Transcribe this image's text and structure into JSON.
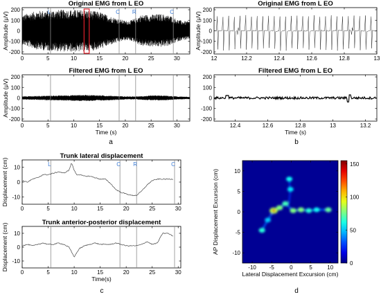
{
  "chart_data": [
    {
      "id": "emg_orig_full",
      "type": "line",
      "title": "Original EMG from L EO",
      "xlabel": "",
      "ylabel": "Amplitude (μV)",
      "xlim": [
        0,
        32.5
      ],
      "ylim": [
        -220,
        220
      ],
      "xticks": [
        0,
        5,
        10,
        15,
        20,
        25,
        30
      ],
      "yticks": [
        -200,
        -100,
        0,
        100,
        200
      ],
      "envelope": {
        "x": [
          0,
          1,
          3,
          5,
          7,
          9,
          11,
          13,
          15,
          17,
          19,
          20,
          21,
          22,
          23,
          25,
          27,
          29,
          30,
          31,
          32.5
        ],
        "upper": [
          150,
          165,
          190,
          195,
          200,
          200,
          200,
          195,
          180,
          140,
          110,
          95,
          100,
          120,
          150,
          155,
          160,
          140,
          110,
          95,
          90
        ],
        "lower": [
          -130,
          -150,
          -180,
          -190,
          -195,
          -200,
          -200,
          -195,
          -175,
          -135,
          -105,
          -90,
          -95,
          -115,
          -145,
          -150,
          -155,
          -135,
          -105,
          -90,
          -85
        ]
      },
      "highlight_window": [
        12,
        13
      ],
      "vlines": [
        5.5,
        18.8,
        22,
        29.3
      ],
      "markers": [
        {
          "x": 5.5,
          "label": "L"
        },
        {
          "x": 18.8,
          "label": "C"
        },
        {
          "x": 22,
          "label": "R"
        },
        {
          "x": 29.3,
          "label": "C"
        }
      ],
      "grid": false
    },
    {
      "id": "emg_filt_full",
      "type": "line",
      "title": "Filtered EMG from L EO",
      "xlabel": "Time (s)",
      "ylabel": "Amplitude (μV)",
      "xlim": [
        0,
        32.5
      ],
      "ylim": [
        -220,
        220
      ],
      "xticks": [
        0,
        5,
        10,
        15,
        20,
        25,
        30
      ],
      "yticks": [
        -200,
        -100,
        0,
        100,
        200
      ],
      "envelope": {
        "x": [
          0,
          2,
          5,
          8,
          10,
          12,
          14,
          16,
          18,
          20,
          22,
          24,
          26,
          28,
          30,
          32.5
        ],
        "upper": [
          15,
          18,
          22,
          25,
          28,
          30,
          28,
          24,
          20,
          15,
          14,
          20,
          25,
          22,
          15,
          10
        ],
        "lower": [
          -15,
          -18,
          -22,
          -25,
          -28,
          -30,
          -28,
          -24,
          -20,
          -15,
          -14,
          -20,
          -25,
          -22,
          -15,
          -10
        ]
      },
      "vlines": [
        5.5,
        18.8,
        22,
        29.3
      ],
      "grid": false
    },
    {
      "id": "emg_orig_zoom",
      "type": "line",
      "title": "Original EMG from L EO",
      "xlabel": "",
      "ylabel": "Amplitude (μV)",
      "xlim": [
        12,
        13
      ],
      "ylim": [
        -220,
        220
      ],
      "xticks": [
        12,
        12.2,
        12.4,
        12.6,
        12.8,
        13
      ],
      "yticks": [
        -200,
        -100,
        0,
        100,
        200
      ],
      "spike_times": [
        12.02,
        12.055,
        12.09,
        12.125,
        12.16,
        12.195,
        12.23,
        12.265,
        12.3,
        12.335,
        12.37,
        12.405,
        12.44,
        12.475,
        12.51,
        12.545,
        12.58,
        12.615,
        12.65,
        12.685,
        12.72,
        12.755,
        12.79,
        12.825,
        12.86,
        12.895,
        12.93,
        12.965
      ],
      "spike_max": 150,
      "spike_min": -190,
      "grid": false
    },
    {
      "id": "emg_filt_zoom",
      "type": "line",
      "title": "Filtered EMG from L EO",
      "xlabel": "Time (s)",
      "ylabel": "",
      "xlim": [
        12.27,
        13.27
      ],
      "ylim": [
        -220,
        220
      ],
      "xticks": [
        12.4,
        12.6,
        12.8,
        13,
        13.2
      ],
      "yticks": [
        -200,
        -100,
        0,
        100,
        200
      ],
      "grid": false
    },
    {
      "id": "trunk_lateral",
      "type": "line",
      "title": "Trunk lateral displacement",
      "xlabel": "",
      "ylabel": "Displacement (cm)",
      "xlim": [
        0,
        30.5
      ],
      "ylim": [
        -15,
        15
      ],
      "xticks": [
        0,
        5,
        10,
        15,
        20,
        25,
        30
      ],
      "yticks": [
        -10,
        0,
        10
      ],
      "x": [
        0,
        1,
        2,
        3,
        4,
        5,
        6,
        7,
        8,
        9,
        9.5,
        10,
        10.5,
        11,
        12,
        13,
        14,
        15,
        16,
        17,
        18,
        19,
        20,
        21,
        22,
        23,
        24,
        25,
        26,
        27,
        28,
        29
      ],
      "y": [
        1,
        0,
        2,
        3,
        5,
        5,
        6,
        7,
        6,
        8,
        13,
        8,
        5,
        5,
        4,
        4,
        3,
        2,
        2,
        -1,
        -5,
        -7,
        -8,
        -9,
        -9,
        -6,
        -2,
        1,
        2,
        2,
        2,
        2
      ],
      "vlines": [
        5.5,
        18.8,
        22,
        29.3
      ],
      "markers": [
        {
          "x": 5.5,
          "label": "L"
        },
        {
          "x": 18.8,
          "label": "C"
        },
        {
          "x": 22,
          "label": "R"
        },
        {
          "x": 29.3,
          "label": "C"
        }
      ],
      "grid": false
    },
    {
      "id": "trunk_ap",
      "type": "line",
      "title": "Trunk anterior-posterior displacement",
      "xlabel": "Time(s)",
      "ylabel": "Displacement (cm)",
      "xlim": [
        0,
        30.5
      ],
      "ylim": [
        -15,
        15
      ],
      "xticks": [
        0,
        5,
        10,
        15,
        20,
        25,
        30
      ],
      "yticks": [
        -10,
        0,
        10
      ],
      "x": [
        0,
        1,
        2,
        3,
        4,
        5,
        6,
        7,
        8,
        9,
        10,
        11,
        12,
        13,
        14,
        15,
        16,
        17,
        18,
        19,
        20,
        21,
        22,
        23,
        24,
        25,
        26,
        27,
        28,
        29
      ],
      "y": [
        1,
        2,
        1,
        2,
        3,
        2,
        2,
        3,
        2,
        0,
        -7,
        -1,
        1,
        2,
        3,
        2,
        2,
        2,
        3,
        2,
        1,
        1,
        1,
        2,
        4,
        2,
        3,
        10,
        10,
        8
      ],
      "vlines": [
        5.5,
        18.8,
        22,
        29.3
      ],
      "grid": false
    },
    {
      "id": "heatmap_excursion",
      "type": "heatmap",
      "title": "",
      "xlabel": "Lateral Displacement Excursion (cm)",
      "ylabel": "AP Displacement Excursion (cm)",
      "xlim": [
        -12.5,
        12
      ],
      "ylim": [
        -12.5,
        12.5
      ],
      "xticks": [
        -10,
        -5,
        0,
        5,
        10
      ],
      "yticks": [
        -10,
        -5,
        0,
        5,
        10
      ],
      "colorbar": {
        "min": 0,
        "max": 155,
        "ticks": [
          0,
          50,
          100,
          150
        ]
      },
      "hotspots": [
        {
          "x": -4.5,
          "y": 0.3,
          "value": 150
        },
        {
          "x": -3.0,
          "y": 1.0,
          "value": 60
        },
        {
          "x": -1.5,
          "y": 2.0,
          "value": 50
        },
        {
          "x": 0.5,
          "y": 0.3,
          "value": 60
        },
        {
          "x": 2.5,
          "y": 0.5,
          "value": 60
        },
        {
          "x": 4.5,
          "y": 0.3,
          "value": 45
        },
        {
          "x": 6.5,
          "y": 0.5,
          "value": 40
        },
        {
          "x": 9.5,
          "y": 0.5,
          "value": 55
        },
        {
          "x": -0.5,
          "y": 8.0,
          "value": 40
        },
        {
          "x": -0.2,
          "y": 5.5,
          "value": 35
        },
        {
          "x": -6.0,
          "y": -2.0,
          "value": 30
        },
        {
          "x": -7.5,
          "y": -4.5,
          "value": 45
        }
      ],
      "grid": false
    }
  ],
  "panel_labels": [
    "a",
    "b",
    "c",
    "d"
  ]
}
